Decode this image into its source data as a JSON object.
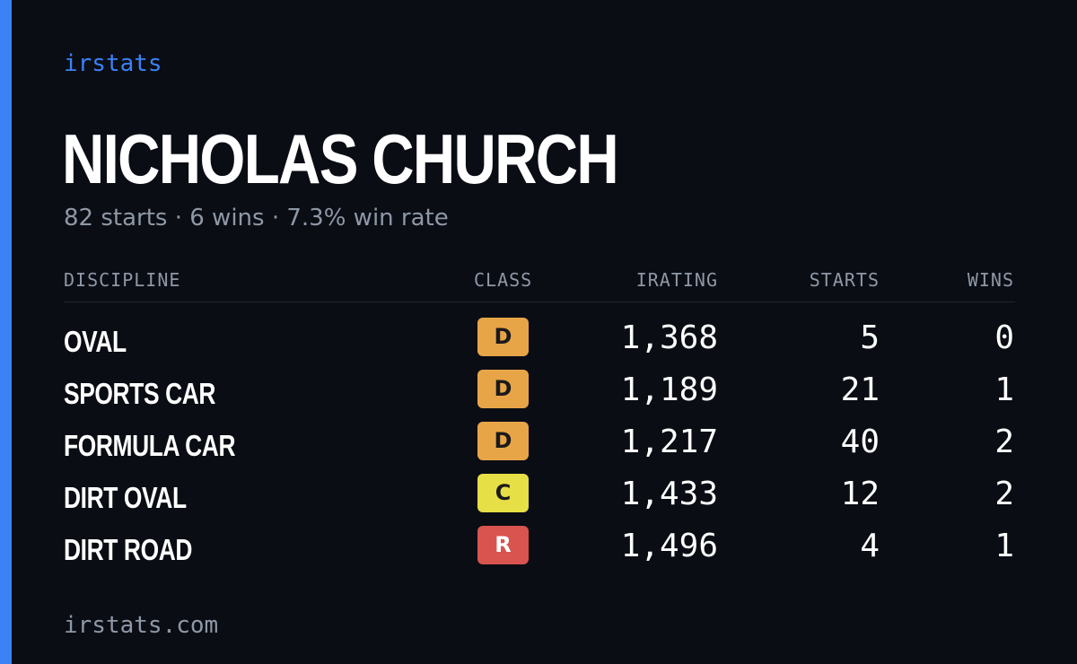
{
  "brand": "irstats",
  "driver": {
    "name": "NICHOLAS CHURCH",
    "summary": "82 starts · 6 wins · 7.3% win rate"
  },
  "table": {
    "headers": {
      "discipline": "DISCIPLINE",
      "class": "CLASS",
      "irating": "IRATING",
      "starts": "STARTS",
      "wins": "WINS"
    },
    "rows": [
      {
        "discipline": "OVAL",
        "class": "D",
        "class_color": "#e8a547",
        "irating": "1,368",
        "starts": "5",
        "wins": "0"
      },
      {
        "discipline": "SPORTS CAR",
        "class": "D",
        "class_color": "#e8a547",
        "irating": "1,189",
        "starts": "21",
        "wins": "1"
      },
      {
        "discipline": "FORMULA CAR",
        "class": "D",
        "class_color": "#e8a547",
        "irating": "1,217",
        "starts": "40",
        "wins": "2"
      },
      {
        "discipline": "DIRT OVAL",
        "class": "C",
        "class_color": "#e6df45",
        "irating": "1,433",
        "starts": "12",
        "wins": "2"
      },
      {
        "discipline": "DIRT ROAD",
        "class": "R",
        "class_color": "#d9534f",
        "irating": "1,496",
        "starts": "4",
        "wins": "1"
      }
    ]
  },
  "footer": "irstats.com",
  "colors": {
    "background": "#0a0d14",
    "accent": "#3b82f6",
    "muted_text": "#8f98a6",
    "class_d": "#e8a547",
    "class_c": "#e6df45",
    "class_r": "#d9534f"
  }
}
